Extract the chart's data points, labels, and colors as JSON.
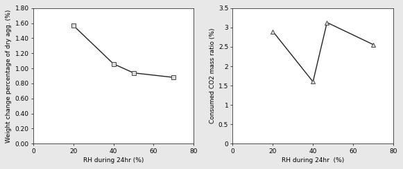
{
  "left": {
    "x": [
      20,
      40,
      50,
      70
    ],
    "y": [
      1.57,
      1.06,
      0.94,
      0.88
    ],
    "xlabel": "RH during 24hr (%)",
    "ylabel": "Weight change percentage of dry agg. (%)",
    "xlim": [
      0,
      80
    ],
    "ylim": [
      0.0,
      1.8
    ],
    "yticks": [
      0.0,
      0.2,
      0.4,
      0.6,
      0.8,
      1.0,
      1.2,
      1.4,
      1.6,
      1.8
    ],
    "xticks": [
      0,
      20,
      40,
      60,
      80
    ],
    "marker": "s",
    "marker_size": 5,
    "line_color": "#222222",
    "marker_facecolor": "#dddddd",
    "marker_edgecolor": "#444444"
  },
  "right": {
    "x": [
      20,
      40,
      47,
      70
    ],
    "y": [
      2.9,
      1.6,
      3.13,
      2.56
    ],
    "xlabel": "RH during 24hr  (%)",
    "ylabel": "Consumed CO2 mass ratio (%)",
    "xlim": [
      0,
      80
    ],
    "ylim": [
      0.0,
      3.5
    ],
    "yticks": [
      0,
      0.5,
      1.0,
      1.5,
      2.0,
      2.5,
      3.0,
      3.5
    ],
    "xticks": [
      0,
      20,
      40,
      60,
      80
    ],
    "marker": "^",
    "marker_size": 5,
    "line_color": "#222222",
    "marker_facecolor": "#dddddd",
    "marker_edgecolor": "#444444"
  },
  "figure_width": 5.81,
  "figure_height": 2.45,
  "dpi": 100,
  "background_color": "#e8e8e8",
  "axes_background": "#ffffff",
  "fontsize_tick": 6.5,
  "fontsize_label": 6.5
}
